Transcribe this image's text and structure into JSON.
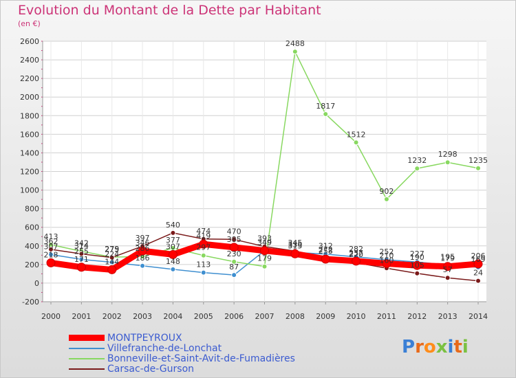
{
  "title": "Evolution du Montant de la Dette par Habitant",
  "subtitle": "(en €)",
  "chart_data": {
    "type": "line",
    "x": [
      "2000",
      "2001",
      "2002",
      "2003",
      "2004",
      "2005",
      "2006",
      "2007",
      "2008",
      "2009",
      "2010",
      "2011",
      "2012",
      "2013",
      "2014"
    ],
    "ylim": [
      -200,
      2600
    ],
    "yticks": [
      -200,
      0,
      200,
      400,
      600,
      800,
      1000,
      1200,
      1400,
      1600,
      1800,
      2000,
      2200,
      2400,
      2600
    ],
    "grid": true,
    "legend_position": "bottom-left",
    "series": [
      {
        "name": "MONTPEYROUX",
        "color": "#ff0000",
        "values": [
          218,
          171,
          144,
          346,
          307,
          419,
          385,
          349,
          315,
          258,
          237,
          210,
          190,
          179,
          206
        ]
      },
      {
        "name": "Villefranche-de-Lonchat",
        "color": "#3f8fd0",
        "values": [
          307,
          255,
          224,
          186,
          148,
          113,
          87,
          349,
          330,
          312,
          282,
          252,
          227,
          195,
          169
        ]
      },
      {
        "name": "Bonneville-et-Saint-Avit-de-Fumadières",
        "color": "#88d860",
        "values": [
          413,
          342,
          279,
          286,
          377,
          297,
          230,
          179,
          2488,
          1817,
          1512,
          902,
          1232,
          1298,
          1235
        ]
      },
      {
        "name": "Carsac-de-Gurson",
        "color": "#7a1a1a",
        "values": [
          362,
          314,
          275,
          397,
          540,
          474,
          470,
          393,
          345,
          272,
          220,
          160,
          105,
          57,
          24
        ]
      }
    ]
  },
  "logo": {
    "text": "Proxiti",
    "letter_colors": [
      "#3a7fd5",
      "#e86a1a",
      "#ff8c1a",
      "#7ac142",
      "#3a7fd5",
      "#e86a1a",
      "#7ac142"
    ]
  }
}
